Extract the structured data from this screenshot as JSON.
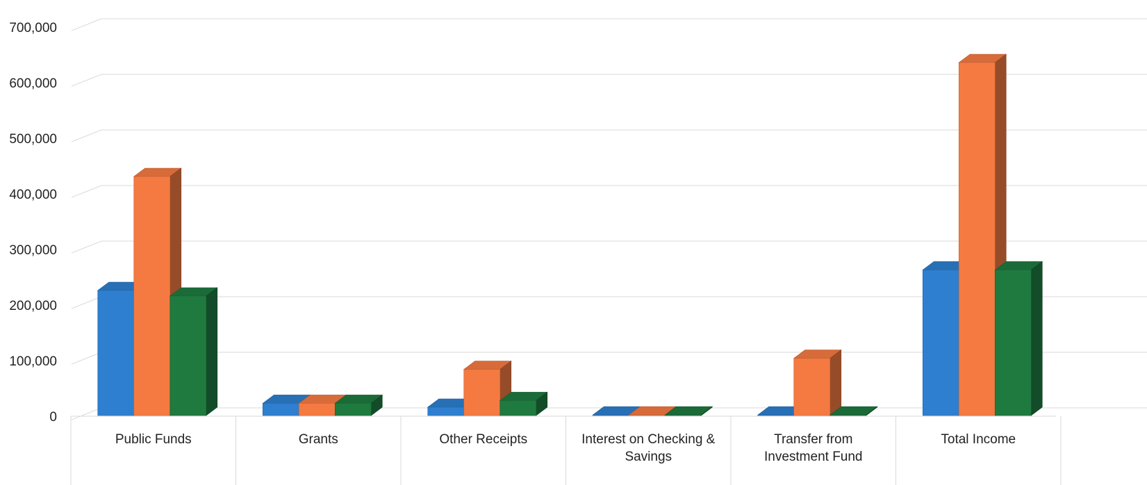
{
  "chart_data": {
    "type": "bar",
    "title": "",
    "xlabel": "",
    "ylabel": "",
    "ylim": [
      0,
      700000
    ],
    "yticks": [
      0,
      100000,
      200000,
      300000,
      400000,
      500000,
      600000,
      700000
    ],
    "ytick_labels": [
      "0",
      "100,000",
      "200,000",
      "300,000",
      "400,000",
      "500,000",
      "600,000",
      "700,000"
    ],
    "grid": true,
    "legend": "none",
    "style": "3d-clustered-column",
    "categories": [
      [
        "Public Funds"
      ],
      [
        "Grants"
      ],
      [
        "Other Receipts"
      ],
      [
        "Interest on Checking &",
        "Savings"
      ],
      [
        "Transfer from",
        "Investment Fund"
      ],
      [
        "Total Income"
      ]
    ],
    "series": [
      {
        "color": "#2e7fcf",
        "values": [
          225000,
          22000,
          15000,
          1000,
          1000,
          262000
        ]
      },
      {
        "color": "#f47a42",
        "values": [
          430000,
          22000,
          83000,
          1000,
          103000,
          635000
        ]
      },
      {
        "color": "#1f7a40",
        "values": [
          215000,
          22000,
          27000,
          1000,
          1000,
          262000
        ]
      }
    ]
  }
}
